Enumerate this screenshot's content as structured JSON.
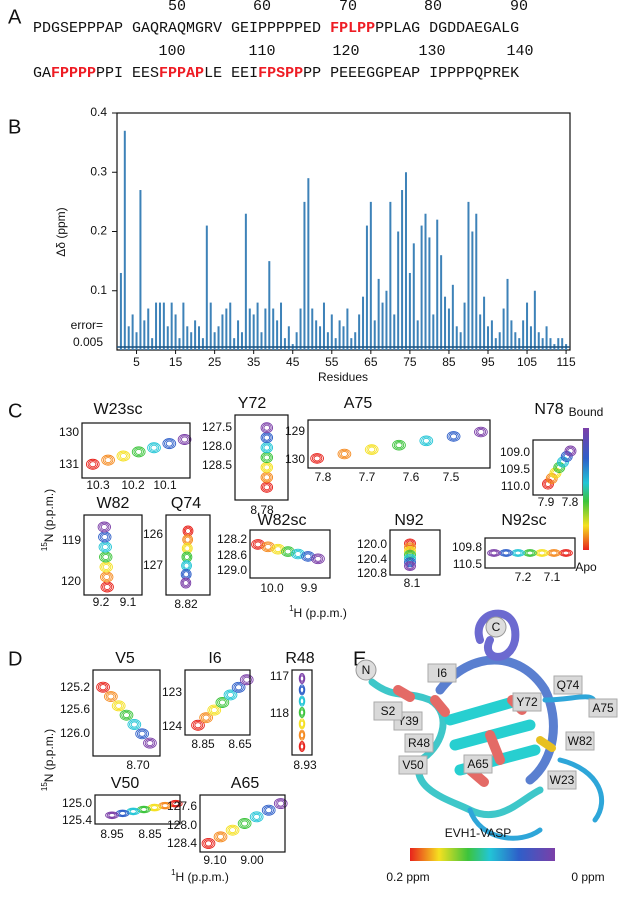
{
  "panel_labels": [
    "A",
    "B",
    "C",
    "D",
    "E"
  ],
  "sequence": {
    "rows": [
      {
        "numbers": [
          "50",
          "60",
          "70",
          "80",
          "90"
        ],
        "segments": [
          {
            "text": "PDGSEPPPAP GAQRAQMGRV GEIPPPPPED ",
            "highlight": false
          },
          {
            "text": "FPLPP",
            "highlight": true
          },
          {
            "text": "PPLAG DGDDAEGALG",
            "highlight": false
          }
        ]
      },
      {
        "numbers": [
          "100",
          "110",
          "120",
          "130",
          "140"
        ],
        "segments": [
          {
            "text": "GA",
            "highlight": false
          },
          {
            "text": "FPPPP",
            "highlight": true
          },
          {
            "text": "PPI EES",
            "highlight": false
          },
          {
            "text": "FPPAP",
            "highlight": true
          },
          {
            "text": "LE EEI",
            "highlight": false
          },
          {
            "text": "FPSPP",
            "highlight": true
          },
          {
            "text": "PP PEEEGGPEAP IPPPPQPREK",
            "highlight": false
          }
        ]
      }
    ],
    "highlight_color": "#ee1c24"
  },
  "chart_data": {
    "type": "bar",
    "x_label": "Residues",
    "y_label": "Δδ (ppm)",
    "color": "#3d82b8",
    "x": [
      1,
      2,
      3,
      4,
      5,
      6,
      7,
      8,
      9,
      10,
      11,
      12,
      13,
      14,
      15,
      16,
      17,
      18,
      19,
      20,
      21,
      22,
      23,
      24,
      25,
      26,
      27,
      28,
      29,
      30,
      31,
      32,
      33,
      34,
      35,
      36,
      37,
      38,
      39,
      40,
      41,
      42,
      43,
      44,
      45,
      46,
      47,
      48,
      49,
      50,
      51,
      52,
      53,
      54,
      55,
      56,
      57,
      58,
      59,
      60,
      61,
      62,
      63,
      64,
      65,
      66,
      67,
      68,
      69,
      70,
      71,
      72,
      73,
      74,
      75,
      76,
      77,
      78,
      79,
      80,
      81,
      82,
      83,
      84,
      85,
      86,
      87,
      88,
      89,
      90,
      91,
      92,
      93,
      94,
      95,
      96,
      97,
      98,
      99,
      100,
      101,
      102,
      103,
      104,
      105,
      106,
      107,
      108,
      109,
      110,
      111,
      112,
      113,
      114,
      115
    ],
    "values": [
      0.13,
      0.37,
      0.04,
      0.06,
      0.03,
      0.27,
      0.05,
      0.07,
      0.02,
      0.08,
      0.08,
      0.08,
      0.04,
      0.08,
      0.06,
      0.02,
      0.08,
      0.04,
      0.03,
      0.05,
      0.04,
      0.02,
      0.21,
      0.08,
      0.03,
      0.04,
      0.06,
      0.07,
      0.08,
      0.02,
      0.05,
      0.03,
      0.23,
      0.07,
      0.06,
      0.08,
      0.03,
      0.07,
      0.15,
      0.07,
      0.05,
      0.08,
      0.02,
      0.04,
      0.01,
      0.03,
      0.07,
      0.25,
      0.29,
      0.07,
      0.05,
      0.04,
      0.08,
      0.03,
      0.06,
      0.02,
      0.05,
      0.04,
      0.07,
      0.02,
      0.03,
      0.06,
      0.09,
      0.21,
      0.25,
      0.05,
      0.12,
      0.08,
      0.1,
      0.25,
      0.06,
      0.2,
      0.27,
      0.3,
      0.13,
      0.18,
      0.05,
      0.21,
      0.23,
      0.19,
      0.06,
      0.22,
      0.16,
      0.09,
      0.07,
      0.11,
      0.04,
      0.03,
      0.08,
      0.25,
      0.2,
      0.23,
      0.06,
      0.09,
      0.04,
      0.05,
      0.02,
      0.03,
      0.07,
      0.12,
      0.05,
      0.03,
      0.02,
      0.05,
      0.08,
      0.04,
      0.1,
      0.03,
      0.02,
      0.04,
      0.02,
      0.01,
      0.02,
      0.02,
      0.01
    ],
    "xlim": [
      0,
      116
    ],
    "xticks": [
      5,
      15,
      25,
      35,
      45,
      55,
      65,
      75,
      85,
      95,
      105,
      115
    ],
    "ylim": [
      0,
      0.4
    ],
    "yticks": [
      0.1,
      0.2,
      0.3,
      0.4
    ],
    "error_text": "error=",
    "error_value": 0.005
  },
  "panel_c": {
    "spectra": [
      {
        "title": "W23sc",
        "xticks": [
          "10.3",
          "10.2",
          "10.1"
        ],
        "yticks": [
          "130",
          "131"
        ]
      },
      {
        "title": "Y72",
        "xticks": [
          "8.78"
        ],
        "yticks": [
          "127.5",
          "128.0",
          "128.5"
        ]
      },
      {
        "title": "A75",
        "xticks": [
          "7.8",
          "7.7",
          "7.6",
          "7.5"
        ],
        "yticks": [
          "129",
          "130"
        ]
      },
      {
        "title": "N78",
        "xticks": [
          "7.9",
          "7.8"
        ],
        "yticks": [
          "109.0",
          "109.5",
          "110.0"
        ]
      },
      {
        "title": "W82",
        "xticks": [
          "9.2",
          "9.1"
        ],
        "yticks": [
          "119",
          "120"
        ]
      },
      {
        "title": "Q74",
        "xticks": [
          "8.82"
        ],
        "yticks": [
          "126",
          "127"
        ]
      },
      {
        "title": "W82sc",
        "xticks": [
          "10.0",
          "9.9"
        ],
        "yticks": [
          "128.2",
          "128.6",
          "129.0"
        ]
      },
      {
        "title": "N92",
        "xticks": [
          "8.1"
        ],
        "yticks": [
          "120.0",
          "120.4",
          "120.8"
        ]
      },
      {
        "title": "N92sc",
        "xticks": [
          "7.2",
          "7.1"
        ],
        "yticks": [
          "109.8",
          "110.5"
        ]
      }
    ],
    "y_label": {
      "sup": "15",
      "text": "N (p.p.m.)"
    },
    "x_label": {
      "sup": "1",
      "text": "H (p.p.m.)"
    },
    "colorbar_top": "Bound",
    "colorbar_bottom": "Apo"
  },
  "panel_d": {
    "spectra": [
      {
        "title": "V5",
        "xticks": [
          "8.70"
        ],
        "yticks": [
          "125.2",
          "125.6",
          "126.0"
        ]
      },
      {
        "title": "I6",
        "xticks": [
          "8.85",
          "8.65"
        ],
        "yticks": [
          "123",
          "124"
        ]
      },
      {
        "title": "R48",
        "xticks": [
          "8.93"
        ],
        "yticks": [
          "117",
          "118"
        ]
      },
      {
        "title": "V50",
        "xticks": [
          "8.95",
          "8.85"
        ],
        "yticks": [
          "125.0",
          "125.4"
        ]
      },
      {
        "title": "A65",
        "xticks": [
          "9.10",
          "9.00"
        ],
        "yticks": [
          "127.6",
          "128.0",
          "128.4"
        ]
      }
    ],
    "y_label": {
      "sup": "15",
      "text": "N (p.p.m.)"
    },
    "x_label": {
      "sup": "1",
      "text": "H (p.p.m.)"
    }
  },
  "panel_e": {
    "termini": [
      "N",
      "C"
    ],
    "residues": [
      "I6",
      "Y39",
      "R48",
      "V50",
      "A65",
      "Y72",
      "Q74",
      "A75",
      "W82",
      "W23",
      "S2"
    ],
    "title": "EVH1-VASP",
    "scale_left": "0.2 ppm",
    "scale_right": "0 ppm"
  }
}
